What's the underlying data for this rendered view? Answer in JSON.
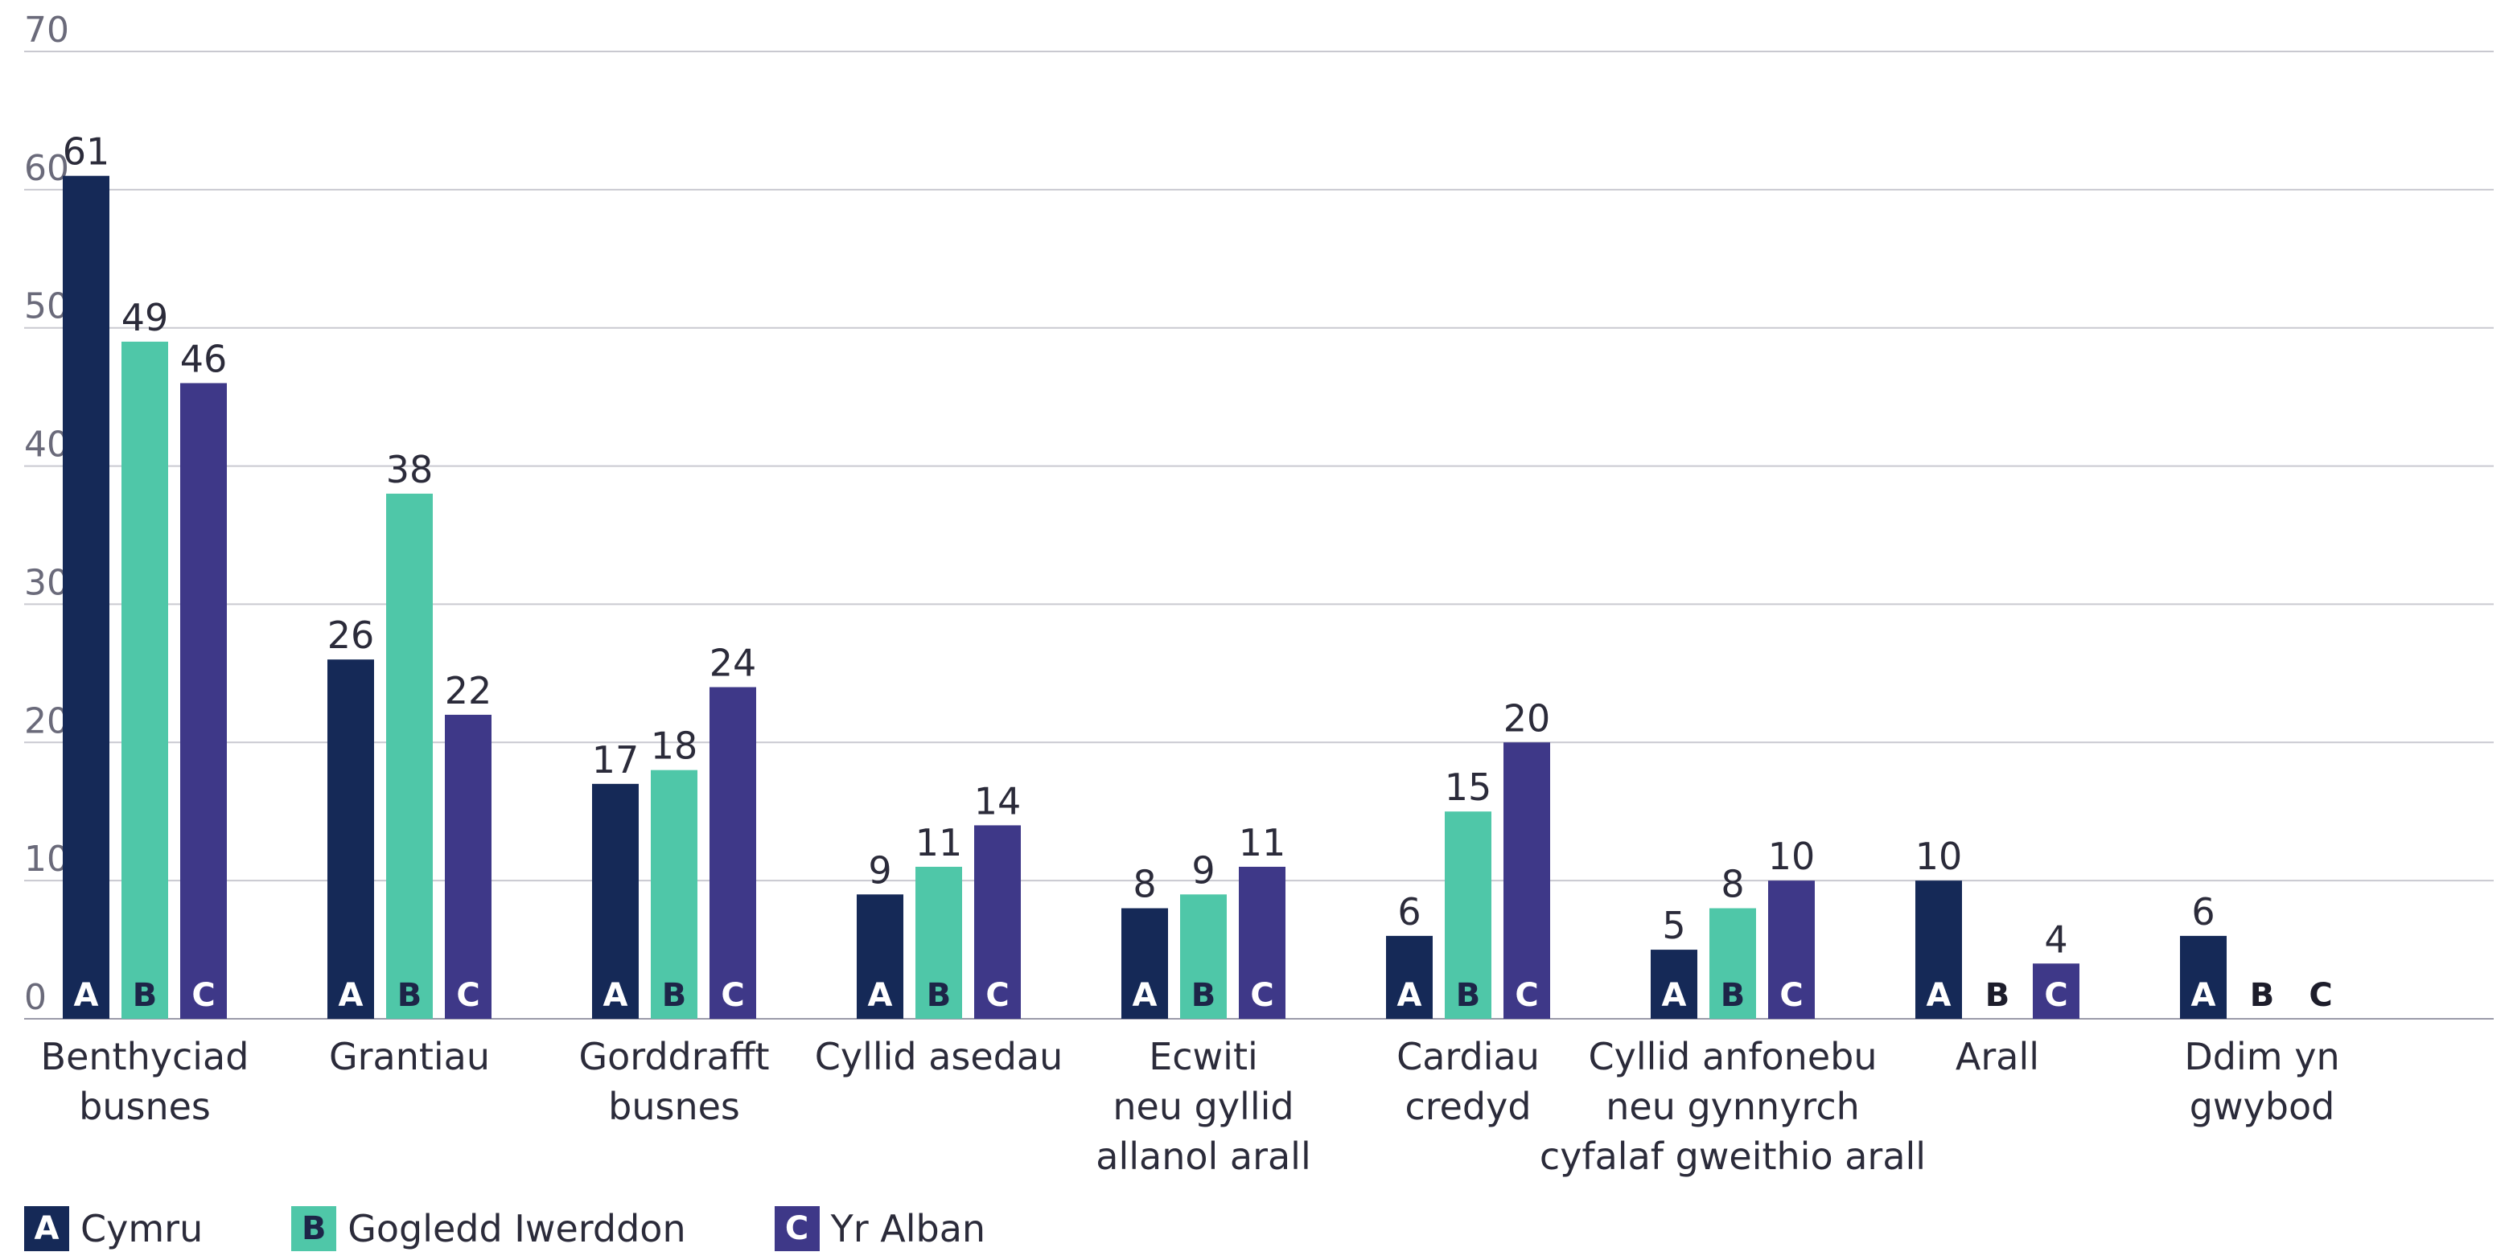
{
  "chart_data": {
    "type": "bar",
    "categories": [
      [
        "Benthyciad",
        "busnes"
      ],
      [
        "Grantiau"
      ],
      [
        "Gorddrafft",
        "busnes"
      ],
      [
        "Cyllid asedau"
      ],
      [
        "Ecwiti",
        "neu gyllid",
        "allanol arall"
      ],
      [
        "Cardiau",
        "credyd"
      ],
      [
        "Cyllid anfonebu",
        "neu gynnyrch",
        "cyfalaf gweithio arall"
      ],
      [
        "Arall"
      ],
      [
        "Ddim yn",
        "gwybod"
      ]
    ],
    "series": [
      {
        "letter": "A",
        "name": "Cymru",
        "color": "#152957",
        "letter_color": "#ffffff",
        "values": [
          61,
          26,
          17,
          9,
          8,
          6,
          5,
          10,
          6
        ]
      },
      {
        "letter": "B",
        "name": "Gogledd Iwerddon",
        "color": "#4fc7a8",
        "letter_color": "#1d2548",
        "values": [
          49,
          38,
          18,
          11,
          9,
          15,
          8,
          null,
          null
        ]
      },
      {
        "letter": "C",
        "name": "Yr Alban",
        "color": "#3e3888",
        "letter_color": "#ffffff",
        "values": [
          46,
          22,
          24,
          14,
          11,
          20,
          10,
          4,
          null
        ]
      }
    ],
    "value_labels": [
      [
        "61",
        "49",
        "46"
      ],
      [
        "26",
        "38",
        "22"
      ],
      [
        "17",
        "18",
        "24"
      ],
      [
        "9",
        "11",
        "14"
      ],
      [
        "8",
        "9",
        "11"
      ],
      [
        "6",
        "15",
        "20"
      ],
      [
        "5",
        "8",
        "10"
      ],
      [
        "10",
        "",
        "4"
      ],
      [
        "6",
        "",
        ""
      ]
    ],
    "ylim": [
      0,
      70
    ],
    "yticks": [
      "0",
      "10",
      "20",
      "30",
      "40",
      "50",
      "60",
      "70"
    ],
    "grid": true,
    "legend_position": "bottom-left"
  }
}
